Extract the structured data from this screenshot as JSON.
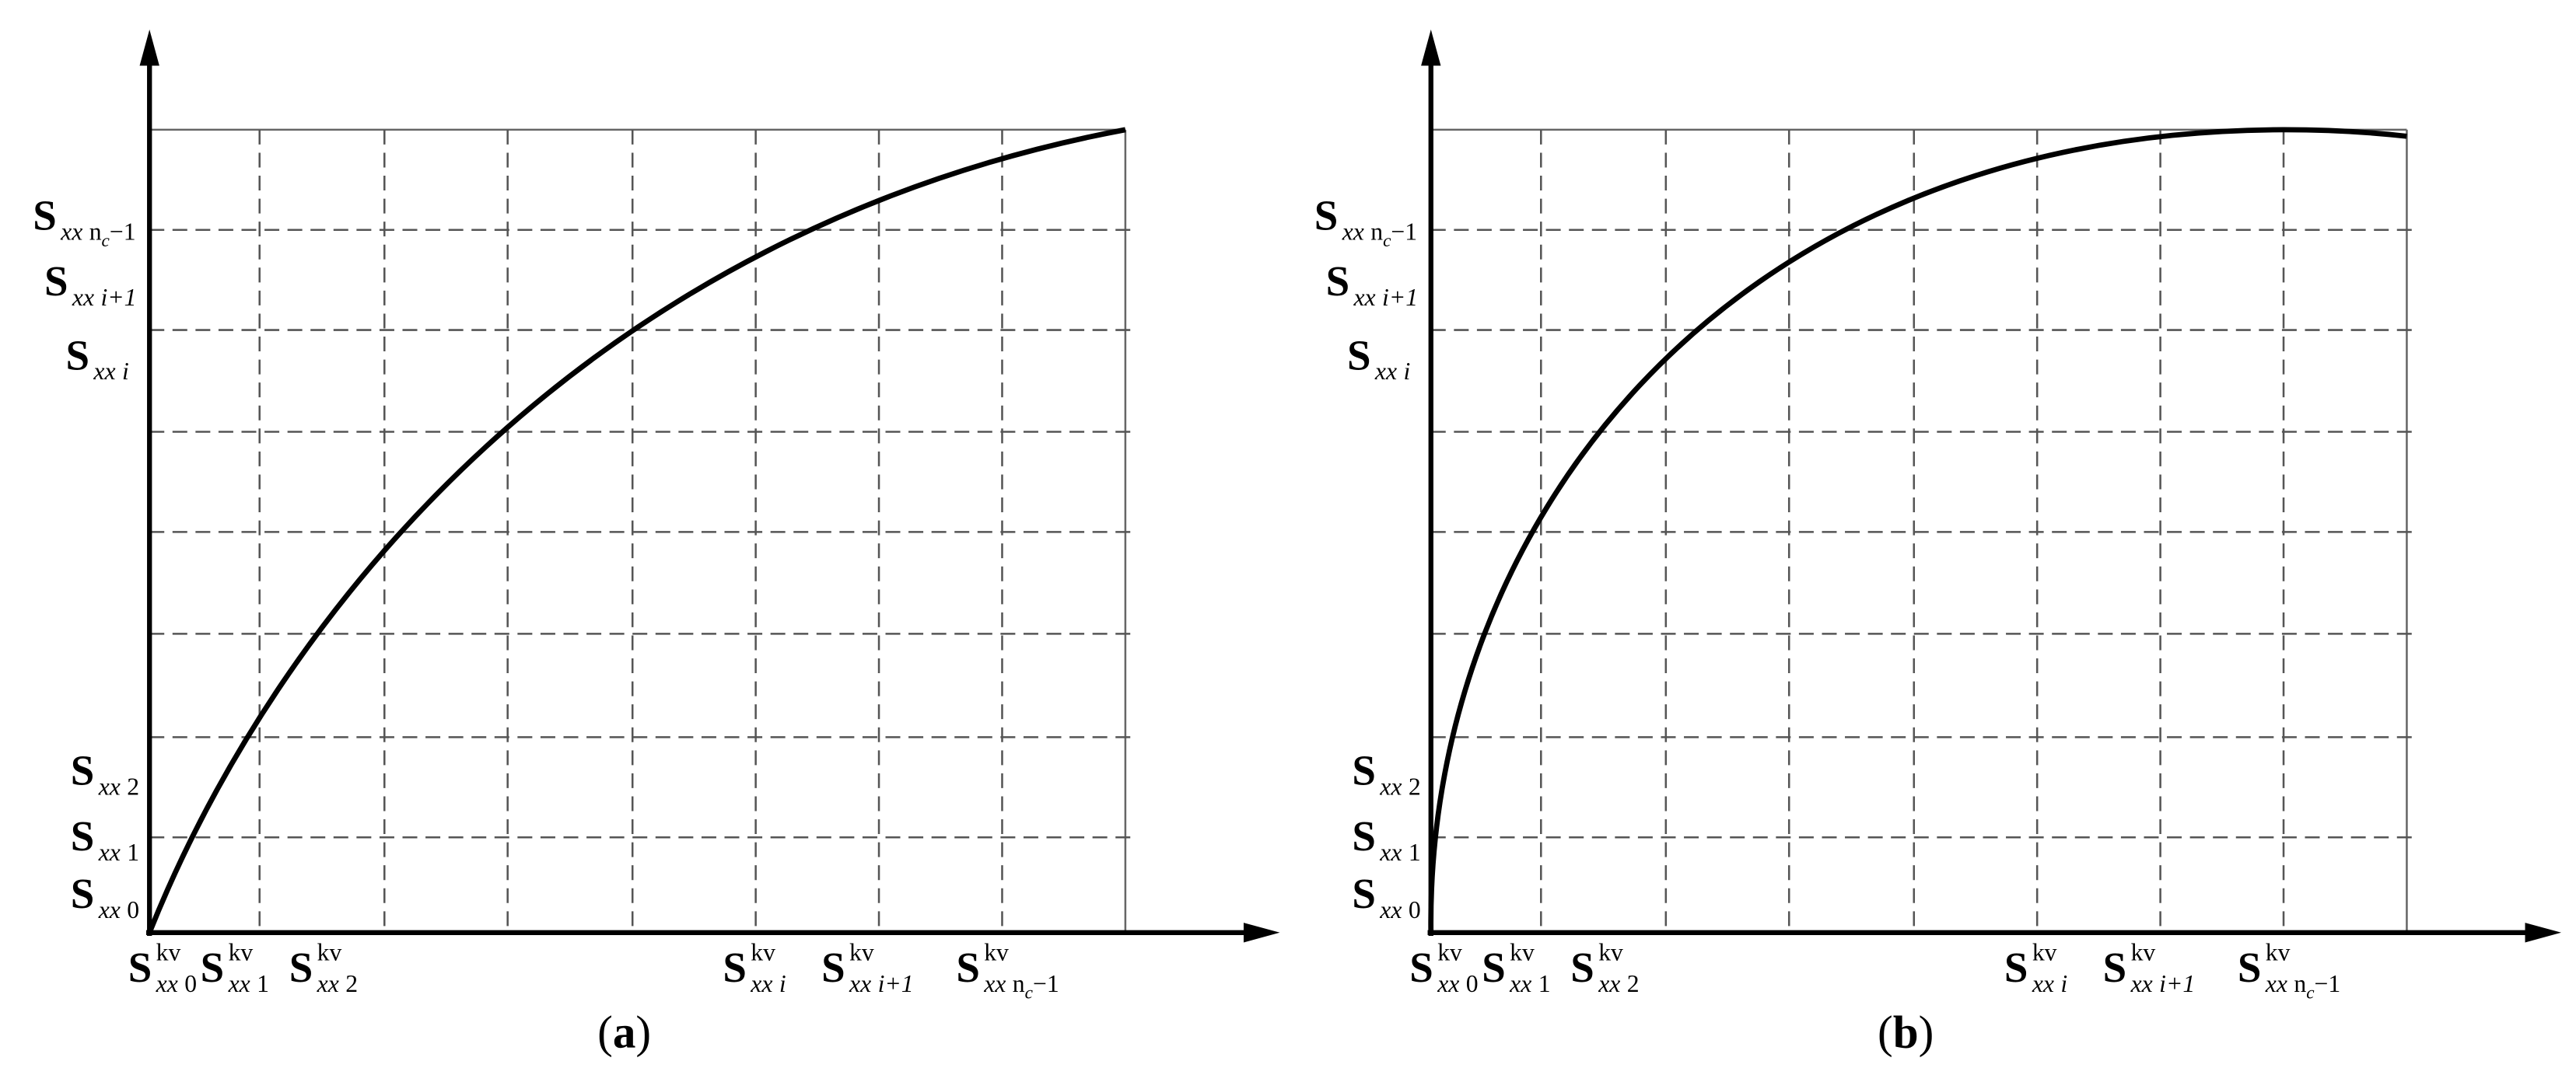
{
  "panels": [
    {
      "label": {
        "open": "(",
        "letter": "a",
        "close": ")"
      },
      "y_labels": [
        {
          "s": "S",
          "sub": "xx",
          "idx": "n",
          "idx_sub": "c",
          "tail": "−1"
        },
        {
          "s": "S",
          "sub": "xx",
          "idx": "i+1"
        },
        {
          "s": "S",
          "sub": "xx",
          "idx": "i"
        },
        {
          "s": "S",
          "sub": "xx",
          "idx": "2"
        },
        {
          "s": "S",
          "sub": "xx",
          "idx": "1"
        },
        {
          "s": "S",
          "sub": "xx",
          "idx": "0"
        }
      ],
      "x_labels": [
        {
          "s": "S",
          "sup": "kv",
          "sub": "xx",
          "idx": "0"
        },
        {
          "s": "S",
          "sup": "kv",
          "sub": "xx",
          "idx": "1"
        },
        {
          "s": "S",
          "sup": "kv",
          "sub": "xx",
          "idx": "2"
        },
        {
          "s": "S",
          "sup": "kv",
          "sub": "xx",
          "idx": "i"
        },
        {
          "s": "S",
          "sup": "kv",
          "sub": "xx",
          "idx": "i+1"
        },
        {
          "s": "S",
          "sup": "kv",
          "sub": "xx",
          "idx": "n",
          "idx_sub": "c",
          "tail": "−1"
        }
      ]
    },
    {
      "label": {
        "open": "(",
        "letter": "b",
        "close": ")"
      },
      "y_labels": [
        {
          "s": "S",
          "sub": "xx",
          "idx": "n",
          "idx_sub": "c",
          "tail": "−1"
        },
        {
          "s": "S",
          "sub": "xx",
          "idx": "i+1"
        },
        {
          "s": "S",
          "sub": "xx",
          "idx": "i"
        },
        {
          "s": "S",
          "sub": "xx",
          "idx": "2"
        },
        {
          "s": "S",
          "sub": "xx",
          "idx": "1"
        },
        {
          "s": "S",
          "sub": "xx",
          "idx": "0"
        }
      ],
      "x_labels": [
        {
          "s": "S",
          "sup": "kv",
          "sub": "xx",
          "idx": "0"
        },
        {
          "s": "S",
          "sup": "kv",
          "sub": "xx",
          "idx": "1"
        },
        {
          "s": "S",
          "sup": "kv",
          "sub": "xx",
          "idx": "2"
        },
        {
          "s": "S",
          "sup": "kv",
          "sub": "xx",
          "idx": "i"
        },
        {
          "s": "S",
          "sup": "kv",
          "sub": "xx",
          "idx": "i+1"
        },
        {
          "s": "S",
          "sup": "kv",
          "sub": "xx",
          "idx": "n",
          "idx_sub": "c",
          "tail": "−1"
        }
      ]
    }
  ]
}
